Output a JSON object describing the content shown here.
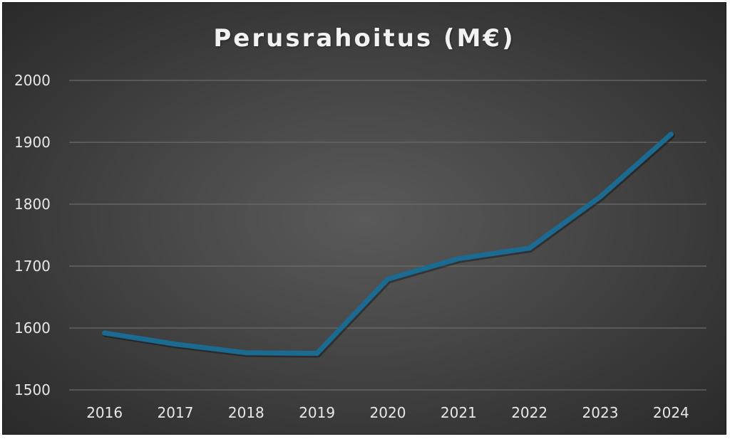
{
  "chart_data": {
    "type": "line",
    "title": "Perusrahoitus (M€)",
    "xlabel": "",
    "ylabel": "",
    "categories": [
      "2016",
      "2017",
      "2018",
      "2019",
      "2020",
      "2021",
      "2022",
      "2023",
      "2024"
    ],
    "series": [
      {
        "values": [
          1592,
          1574,
          1560,
          1559,
          1679,
          1712,
          1729,
          1812,
          1913
        ]
      }
    ],
    "ylim": [
      1500,
      2000
    ],
    "yticks": [
      "1500",
      "1600",
      "1700",
      "1800",
      "1900",
      "2000"
    ],
    "grid": true,
    "legend": "none",
    "colors": {
      "line": "#1b6a92",
      "grid": "#6b6b6b",
      "text": "#e8e8e8"
    }
  }
}
